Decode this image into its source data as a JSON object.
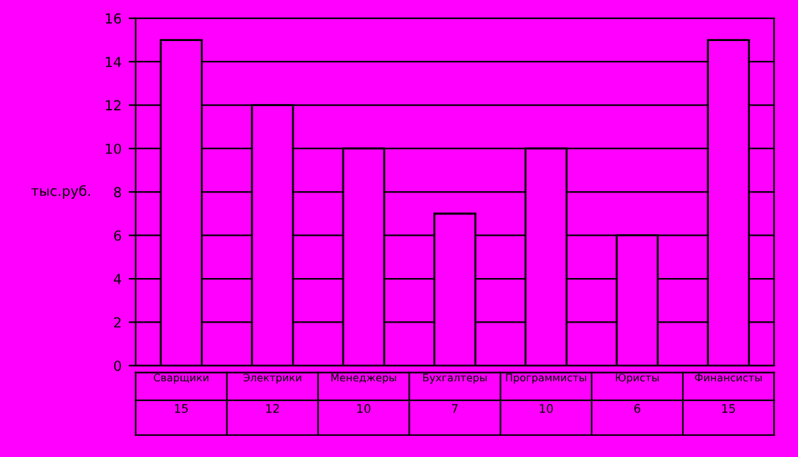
{
  "chart_data": {
    "type": "bar",
    "ylabel": "тыс.руб.",
    "categories": [
      "Сварщики",
      "Электрики",
      "Менеджеры",
      "Бухгалтеры",
      "Программисты",
      "Юристы",
      "Финансисты"
    ],
    "values": [
      15,
      12,
      10,
      7,
      10,
      6,
      15
    ],
    "color": "#ff00ff",
    "ylim": [
      0,
      16
    ],
    "yticks": [
      0,
      2,
      4,
      6,
      8,
      10,
      12,
      14,
      16
    ],
    "grid": "y",
    "data_labels": true
  }
}
